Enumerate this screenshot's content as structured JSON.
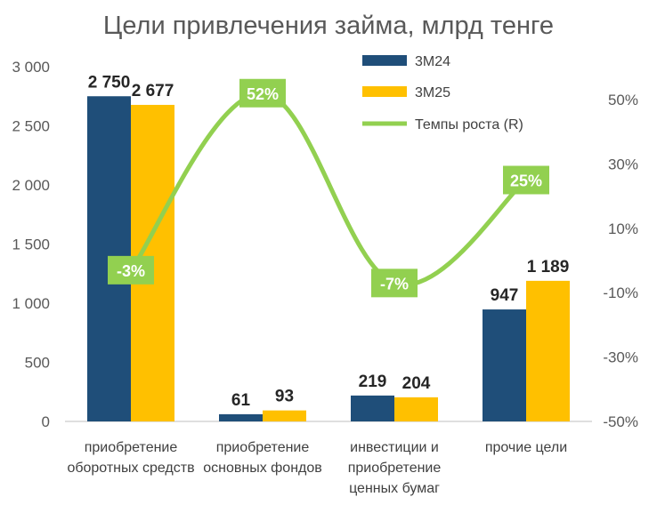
{
  "chart_data": {
    "type": "bar",
    "title": "Цели привлечения займа, млрд тенге",
    "categories": [
      [
        "приобретение",
        "оборотных средств"
      ],
      [
        "приобретение",
        "основных фондов"
      ],
      [
        "инвестиции и",
        "приобретение",
        "ценных бумаг"
      ],
      [
        "прочие цели"
      ]
    ],
    "series": [
      {
        "name": "3М24",
        "color": "#1f4e79",
        "values": [
          2750,
          61,
          219,
          947
        ],
        "labels": [
          "2 750",
          "61",
          "219",
          "947"
        ]
      },
      {
        "name": "3М25",
        "color": "#ffc000",
        "values": [
          2677,
          93,
          204,
          1189
        ],
        "labels": [
          "2 677",
          "93",
          "204",
          "1 189"
        ]
      }
    ],
    "line_series": {
      "name": "Темпы роста (R)",
      "color": "#92d050",
      "values": [
        -3,
        52,
        -7,
        25
      ],
      "labels": [
        "-3%",
        "52%",
        "-7%",
        "25%"
      ]
    },
    "y_left": {
      "min": 0,
      "max": 3000,
      "ticks": [
        0,
        500,
        1000,
        1500,
        2000,
        2500,
        3000
      ],
      "tick_labels": [
        "0",
        "500",
        "1 000",
        "1 500",
        "2 000",
        "2 500",
        "3 000"
      ]
    },
    "y_right": {
      "min": -50,
      "max": 60,
      "ticks": [
        -50,
        -30,
        -10,
        10,
        30,
        50
      ],
      "tick_labels": [
        "-50%",
        "-30%",
        "-10%",
        "10%",
        "30%",
        "50%"
      ]
    },
    "legend": [
      "3М24",
      "3М25",
      "Темпы роста (R)"
    ],
    "legend_position": "top-right"
  }
}
